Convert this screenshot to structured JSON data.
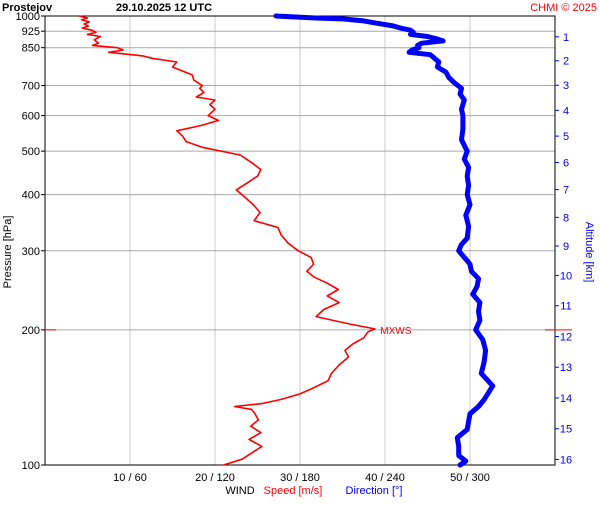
{
  "header": {
    "station": "Prostejov",
    "datetime": "29.10.2025 12 UTC",
    "copyright": "CHMI © 2025"
  },
  "footer": {
    "wind_label": "WIND",
    "speed_label": "Speed [m/s]",
    "direction_label": "Direction [°]"
  },
  "colors": {
    "speed": "#ff0000",
    "direction": "#0000ff",
    "grid": "#aaaaaa",
    "text": "#000000"
  },
  "chart_data": {
    "type": "line",
    "title": "Prostejov   29.10.2025 12 UTC",
    "ylabel": "Pressure [hPa]",
    "y2label": "Altitude [km]",
    "xlabel": "WIND",
    "y_scale": "log",
    "ylim": [
      1000,
      100
    ],
    "xlim_speed": [
      0,
      60
    ],
    "xlim_direction": [
      0,
      360
    ],
    "grid": true,
    "x_ticks": [
      "10 / 60",
      "20 / 120",
      "30 / 180",
      "40 / 240",
      "50 / 300"
    ],
    "x_tick_values_speed": [
      10,
      20,
      30,
      40,
      50
    ],
    "y_ticks": [
      100,
      200,
      300,
      400,
      500,
      600,
      700,
      850,
      925,
      1000
    ],
    "altitude_ticks_km": [
      1,
      2,
      3,
      4,
      5,
      6,
      7,
      8,
      9,
      10,
      11,
      12,
      13,
      14,
      15,
      16
    ],
    "annotation": {
      "text": "MXWS",
      "pressure": 200,
      "speed": 38.5
    },
    "series": [
      {
        "name": "Speed [m/s]",
        "color": "#ff0000",
        "unit": "m/s",
        "points": [
          [
            1000,
            4.0
          ],
          [
            990,
            5.0
          ],
          [
            980,
            4.3
          ],
          [
            970,
            5.2
          ],
          [
            960,
            4.6
          ],
          [
            950,
            5.1
          ],
          [
            940,
            4.4
          ],
          [
            930,
            5.5
          ],
          [
            920,
            6.0
          ],
          [
            910,
            5.0
          ],
          [
            900,
            6.5
          ],
          [
            885,
            5.8
          ],
          [
            870,
            6.3
          ],
          [
            860,
            5.6
          ],
          [
            850,
            8.5
          ],
          [
            840,
            9.2
          ],
          [
            830,
            7.5
          ],
          [
            815,
            11.5
          ],
          [
            805,
            12.6
          ],
          [
            790,
            15.5
          ],
          [
            770,
            15.0
          ],
          [
            750,
            16.5
          ],
          [
            740,
            17.3
          ],
          [
            720,
            17.5
          ],
          [
            700,
            18.5
          ],
          [
            690,
            18.2
          ],
          [
            675,
            18.7
          ],
          [
            660,
            17.8
          ],
          [
            650,
            20.0
          ],
          [
            635,
            19.4
          ],
          [
            620,
            20.0
          ],
          [
            600,
            19.2
          ],
          [
            585,
            20.4
          ],
          [
            570,
            18.3
          ],
          [
            555,
            15.5
          ],
          [
            540,
            16.2
          ],
          [
            525,
            16.6
          ],
          [
            510,
            18.5
          ],
          [
            490,
            23.0
          ],
          [
            470,
            24.4
          ],
          [
            455,
            25.4
          ],
          [
            440,
            25.0
          ],
          [
            425,
            23.8
          ],
          [
            410,
            22.5
          ],
          [
            395,
            23.5
          ],
          [
            380,
            24.5
          ],
          [
            365,
            25.3
          ],
          [
            350,
            24.6
          ],
          [
            338,
            27.4
          ],
          [
            325,
            27.8
          ],
          [
            312,
            28.6
          ],
          [
            300,
            29.8
          ],
          [
            290,
            31.3
          ],
          [
            280,
            31.6
          ],
          [
            270,
            30.8
          ],
          [
            262,
            31.7
          ],
          [
            254,
            33.2
          ],
          [
            246,
            34.5
          ],
          [
            238,
            33.2
          ],
          [
            230,
            34.6
          ],
          [
            222,
            32.8
          ],
          [
            214,
            31.9
          ],
          [
            206,
            35.9
          ],
          [
            201,
            38.8
          ],
          [
            198,
            38.0
          ],
          [
            192,
            37.5
          ],
          [
            186,
            36.2
          ],
          [
            180,
            35.3
          ],
          [
            174,
            35.7
          ],
          [
            167,
            34.6
          ],
          [
            160,
            33.7
          ],
          [
            154,
            33.3
          ],
          [
            148,
            31.4
          ],
          [
            144,
            30.0
          ],
          [
            140,
            27.8
          ],
          [
            137,
            25.5
          ],
          [
            135,
            22.3
          ],
          [
            133,
            24.3
          ],
          [
            130,
            24.7
          ],
          [
            126,
            25.1
          ],
          [
            122,
            24.2
          ],
          [
            118,
            25.4
          ],
          [
            114,
            24.0
          ],
          [
            110,
            25.5
          ],
          [
            106,
            24.2
          ],
          [
            103,
            23.2
          ],
          [
            100,
            21.0
          ]
        ]
      },
      {
        "name": "Direction [°]",
        "color": "#0000ff",
        "unit": "°",
        "points": [
          [
            1000,
            163
          ],
          [
            995,
            177
          ],
          [
            990,
            191
          ],
          [
            985,
            210
          ],
          [
            975,
            225
          ],
          [
            965,
            233
          ],
          [
            950,
            246
          ],
          [
            940,
            251
          ],
          [
            930,
            258
          ],
          [
            920,
            260
          ],
          [
            910,
            258
          ],
          [
            900,
            270
          ],
          [
            890,
            276
          ],
          [
            880,
            281
          ],
          [
            870,
            266
          ],
          [
            860,
            263
          ],
          [
            850,
            264
          ],
          [
            840,
            259
          ],
          [
            830,
            257
          ],
          [
            820,
            272
          ],
          [
            810,
            274
          ],
          [
            790,
            278
          ],
          [
            770,
            277
          ],
          [
            750,
            283
          ],
          [
            730,
            285
          ],
          [
            710,
            289
          ],
          [
            690,
            294
          ],
          [
            670,
            293
          ],
          [
            650,
            296
          ],
          [
            620,
            294
          ],
          [
            600,
            295
          ],
          [
            560,
            295
          ],
          [
            530,
            294
          ],
          [
            500,
            298
          ],
          [
            480,
            296
          ],
          [
            460,
            299
          ],
          [
            440,
            298
          ],
          [
            420,
            299
          ],
          [
            400,
            298
          ],
          [
            380,
            300
          ],
          [
            360,
            297
          ],
          [
            340,
            299
          ],
          [
            320,
            298
          ],
          [
            310,
            294
          ],
          [
            300,
            292
          ],
          [
            290,
            296
          ],
          [
            280,
            300
          ],
          [
            270,
            301
          ],
          [
            260,
            306
          ],
          [
            250,
            305
          ],
          [
            240,
            302
          ],
          [
            230,
            307
          ],
          [
            220,
            306
          ],
          [
            210,
            307
          ],
          [
            200,
            304
          ],
          [
            190,
            309
          ],
          [
            180,
            311
          ],
          [
            170,
            310
          ],
          [
            160,
            308
          ],
          [
            150,
            316
          ],
          [
            140,
            310
          ],
          [
            135,
            306
          ],
          [
            130,
            300
          ],
          [
            125,
            299
          ],
          [
            120,
            298
          ],
          [
            115,
            291
          ],
          [
            110,
            292
          ],
          [
            105,
            292
          ],
          [
            102,
            297
          ],
          [
            100,
            293
          ]
        ]
      }
    ]
  }
}
